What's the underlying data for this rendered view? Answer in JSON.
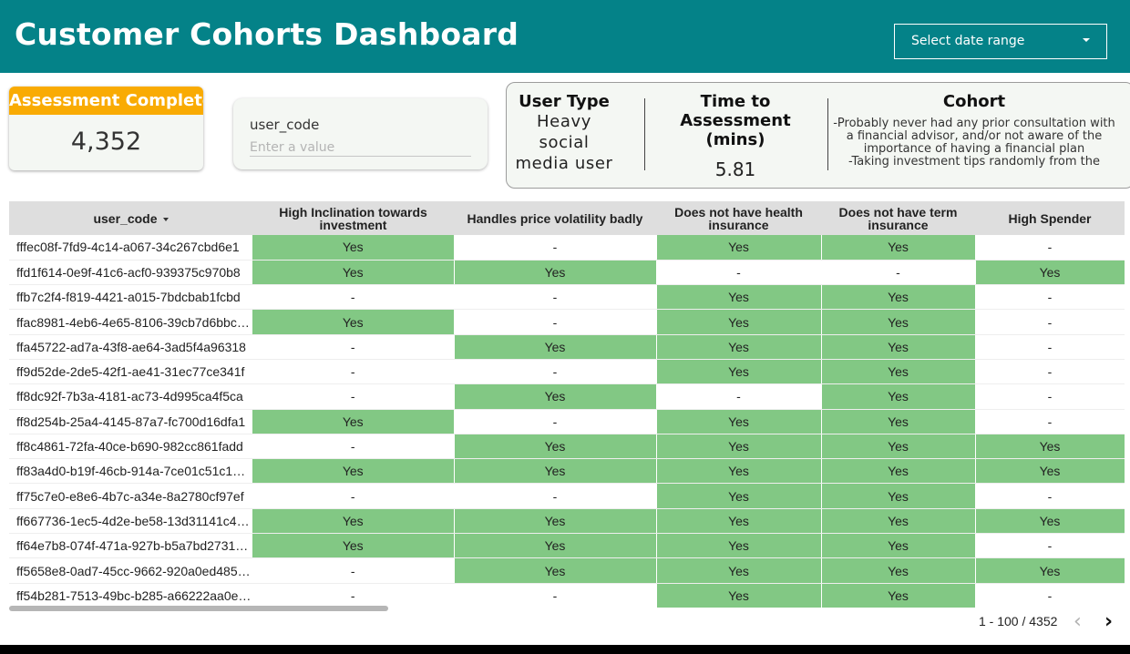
{
  "header": {
    "title": "Customer Cohorts Dashboard",
    "date_range_label": "Select date range",
    "background_color": "#048288"
  },
  "kpi": {
    "label": "Assessment Completed",
    "value": "4,352",
    "accent_color": "#f9ab03"
  },
  "filter": {
    "label": "user_code",
    "placeholder": "Enter a value"
  },
  "cohort_card": {
    "user_type_heading": "User Type",
    "user_type_value_lines": [
      "Heavy",
      "social",
      "media user"
    ],
    "time_heading_line1": "Time to Assessment",
    "time_heading_line2": "(mins)",
    "time_value": "5.81",
    "cohort_heading": "Cohort",
    "cohort_text_lines": [
      "-Probably never had any prior consultation with",
      "a financial advisor, and/or not aware of the",
      "importance of having a financial plan",
      "-Taking investment tips randomly from the"
    ]
  },
  "table": {
    "columns": [
      "user_code",
      "High Inclination towards investment",
      "Handles price volatility badly",
      "Does not have health insurance",
      "Does not have term insurance",
      "High Spender"
    ],
    "yes_color": "#82c884",
    "rows": [
      [
        "fffec08f-7fd9-4c14-a067-34c267cbd6e1",
        "Yes",
        "-",
        "Yes",
        "Yes",
        "-"
      ],
      [
        "ffd1f614-0e9f-41c6-acf0-939375c970b8",
        "Yes",
        "Yes",
        "-",
        "-",
        "Yes"
      ],
      [
        "ffb7c2f4-f819-4421-a015-7bdcbab1fcbd",
        "-",
        "-",
        "Yes",
        "Yes",
        "-"
      ],
      [
        "ffac8981-4eb6-4e65-8106-39cb7d6bbc…",
        "Yes",
        "-",
        "Yes",
        "Yes",
        "-"
      ],
      [
        "ffa45722-ad7a-43f8-ae64-3ad5f4a96318",
        "-",
        "Yes",
        "Yes",
        "Yes",
        "-"
      ],
      [
        "ff9d52de-2de5-42f1-ae41-31ec77ce341f",
        "-",
        "-",
        "Yes",
        "Yes",
        "-"
      ],
      [
        "ff8dc92f-7b3a-4181-ac73-4d995ca4f5ca",
        "-",
        "Yes",
        "-",
        "Yes",
        "-"
      ],
      [
        "ff8d254b-25a4-4145-87a7-fc700d16dfa1",
        "Yes",
        "-",
        "Yes",
        "Yes",
        "-"
      ],
      [
        "ff8c4861-72fa-40ce-b690-982cc861fadd",
        "-",
        "Yes",
        "Yes",
        "Yes",
        "Yes"
      ],
      [
        "ff83a4d0-b19f-46cb-914a-7ce01c51c1…",
        "Yes",
        "Yes",
        "Yes",
        "Yes",
        "Yes"
      ],
      [
        "ff75c7e0-e8e6-4b7c-a34e-8a2780cf97ef",
        "-",
        "-",
        "Yes",
        "Yes",
        "-"
      ],
      [
        "ff667736-1ec5-4d2e-be58-13d31141c4…",
        "Yes",
        "Yes",
        "Yes",
        "Yes",
        "Yes"
      ],
      [
        "ff64e7b8-074f-471a-927b-b5a7bd2731…",
        "Yes",
        "Yes",
        "Yes",
        "Yes",
        "-"
      ],
      [
        "ff5658e8-0ad7-45cc-9662-920a0ed485…",
        "-",
        "Yes",
        "Yes",
        "Yes",
        "Yes"
      ],
      [
        "ff54b281-7513-49bc-b285-a66222aa0e…",
        "-",
        "-",
        "Yes",
        "Yes",
        "-"
      ]
    ]
  },
  "pagination": {
    "label": "1 - 100 / 4352",
    "prev_icon": "chevron-left-icon",
    "next_icon": "chevron-right-icon"
  }
}
